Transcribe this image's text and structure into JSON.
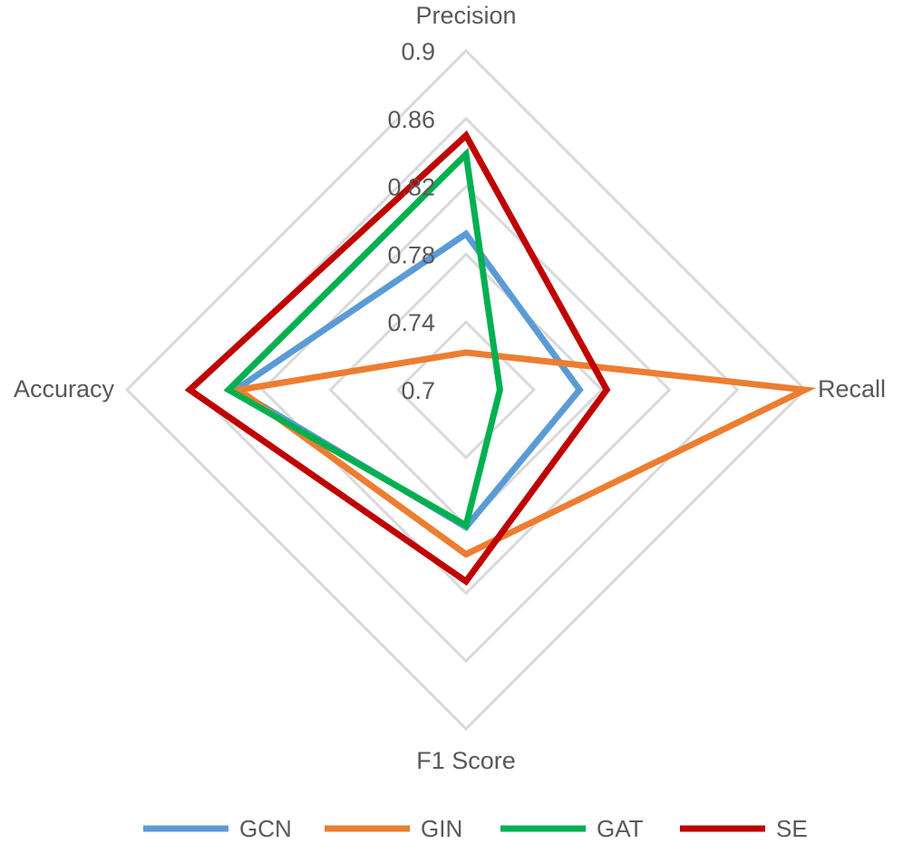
{
  "chart_data": {
    "type": "radar",
    "axes": [
      "Precision",
      "Recall",
      "F1 Score",
      "Accuracy"
    ],
    "ticks": [
      "0.7",
      "0.74",
      "0.78",
      "0.82",
      "0.86",
      "0.9"
    ],
    "range": [
      0.7,
      0.9
    ],
    "grid": true,
    "legend_position": "bottom",
    "series": [
      {
        "name": "GCN",
        "color": "#5b9bd5",
        "values": [
          0.792,
          0.767,
          0.781,
          0.836
        ]
      },
      {
        "name": "GIN",
        "color": "#ed7d31",
        "values": [
          0.722,
          0.9,
          0.797,
          0.834
        ]
      },
      {
        "name": "GAT",
        "color": "#00b050",
        "values": [
          0.839,
          0.72,
          0.78,
          0.84
        ]
      },
      {
        "name": "SE",
        "color": "#c00000",
        "values": [
          0.85,
          0.783,
          0.813,
          0.863
        ]
      }
    ]
  }
}
